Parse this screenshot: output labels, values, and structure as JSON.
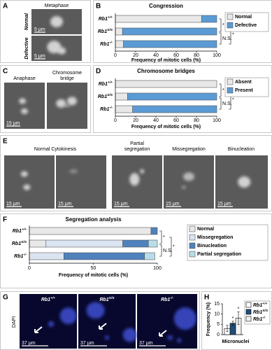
{
  "panels": [
    {
      "label": "A",
      "title": "Metaphase",
      "row_labels": [
        "Normal",
        "Defective"
      ],
      "scale_bar": "5 μm"
    },
    {
      "label": "C",
      "image_titles": [
        [
          "Anaphase"
        ],
        [
          "Chromosome",
          "bridge"
        ]
      ],
      "scale_bar": "15 μm"
    },
    {
      "label": "E",
      "image_titles": [
        [
          "Normal Cytokinesis"
        ],
        [
          "Partial",
          "segregation"
        ],
        [
          "Missegregation"
        ],
        [
          "Binucleation"
        ]
      ],
      "scale_bar": "15 μm"
    },
    {
      "label": "G",
      "stain": "DAPI",
      "image_titles": [
        "Rb1+/+",
        "Rb1S/S",
        "Rb1-/-"
      ],
      "scale_bar": "37 μm"
    }
  ],
  "chart_data": [
    {
      "type": "bar",
      "label": "B",
      "title": "Congression",
      "orientation": "horizontal",
      "stacked": true,
      "categories": [
        "Rb1+/+",
        "Rb1S/S",
        "Rb1-/-"
      ],
      "series": [
        {
          "name": "Normal",
          "color": "#e8e8e8",
          "values": [
            85,
            7,
            8
          ]
        },
        {
          "name": "Defective",
          "color": "#5b9bd5",
          "values": [
            15,
            93,
            92
          ]
        }
      ],
      "xlim": [
        0,
        100
      ],
      "xticks": [
        0,
        20,
        40,
        60,
        80,
        100
      ],
      "xlabel": "Frequency of mitotic cells (%)",
      "annotations": [
        "*",
        "*",
        "N.S."
      ]
    },
    {
      "type": "bar",
      "label": "D",
      "title": "Chromosome bridges",
      "orientation": "horizontal",
      "stacked": true,
      "categories": [
        "Rb1+/+",
        "Rb1S/S",
        "Rb1-/-"
      ],
      "series": [
        {
          "name": "Absent",
          "color": "#e8e8e8",
          "values": [
            100,
            12,
            17
          ]
        },
        {
          "name": "Present",
          "color": "#5b9bd5",
          "values": [
            0,
            88,
            83
          ]
        }
      ],
      "xlim": [
        0,
        100
      ],
      "xticks": [
        0,
        20,
        40,
        60,
        80,
        100
      ],
      "xlabel": "Frequency of mitotic cells (%)",
      "annotations": [
        "*",
        "*",
        "N.S."
      ]
    },
    {
      "type": "bar",
      "label": "F",
      "title": "Segregation analysis",
      "orientation": "horizontal",
      "stacked": true,
      "categories": [
        "Rb1+/+",
        "Rb1S/S",
        "Rb1-/-"
      ],
      "series": [
        {
          "name": "Normal",
          "color": "#e8e8e8",
          "values": [
            95,
            13,
            0
          ]
        },
        {
          "name": "Missegregation",
          "color": "#dbe5f1",
          "values": [
            0,
            60,
            27
          ]
        },
        {
          "name": "Binucleation",
          "color": "#4f81bd",
          "values": [
            5,
            20,
            63
          ]
        },
        {
          "name": "Partial segregation",
          "color": "#b7dde8",
          "values": [
            0,
            7,
            8
          ]
        }
      ],
      "xlim": [
        0,
        100
      ],
      "xticks": [
        0,
        50,
        100
      ],
      "xlabel": "Frequency of mitotic cells (%)",
      "annotations": [
        "*",
        "*",
        "N.S."
      ]
    },
    {
      "type": "errorbar",
      "label": "H",
      "categories": [
        "Micronuclei"
      ],
      "ylabel": "Frequency (%)",
      "series": [
        {
          "name": "Rb1+/+",
          "color": "#ffffff",
          "values": [
            3
          ],
          "errors": [
            1.5
          ]
        },
        {
          "name": "Rb1S/S",
          "color": "#1f4e79",
          "values": [
            5.5
          ],
          "errors": [
            1
          ],
          "annotation": "*"
        },
        {
          "name": "Rb1-/-",
          "color": "#f2f2f2",
          "values": [
            8
          ],
          "errors": [
            3
          ],
          "annotation": "*"
        }
      ],
      "ylim": [
        0,
        15
      ],
      "yticks": [
        0,
        5,
        10,
        15
      ]
    }
  ]
}
